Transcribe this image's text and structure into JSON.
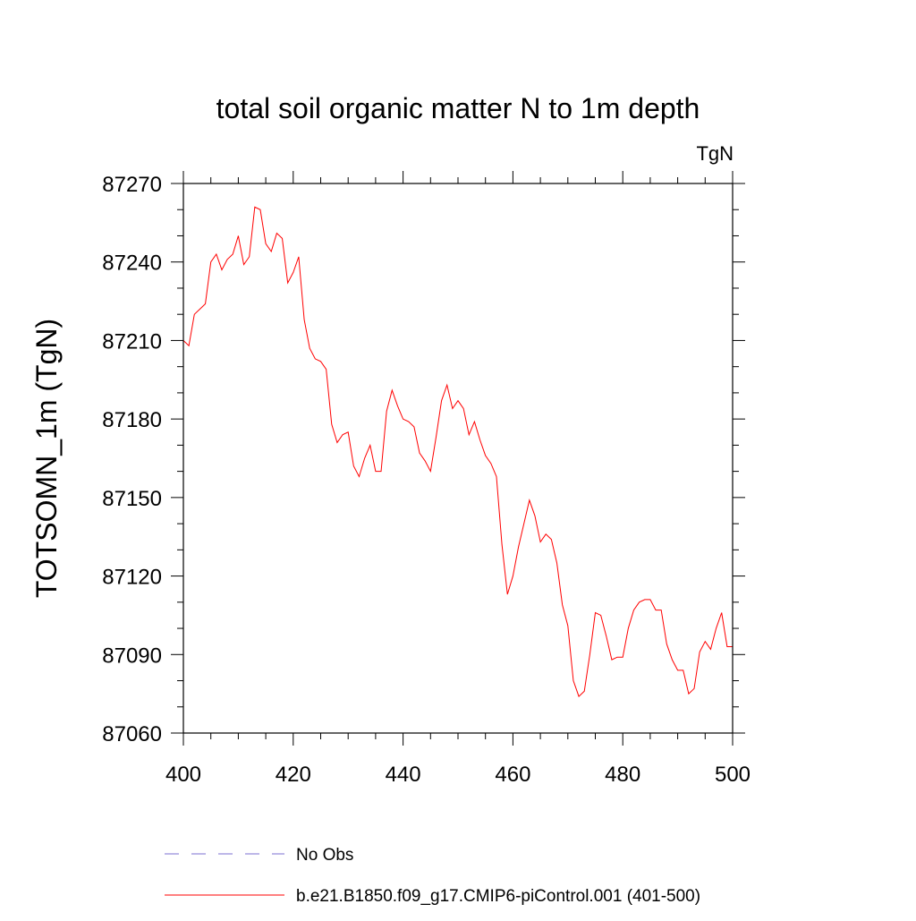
{
  "chart_data": {
    "type": "line",
    "title": "total soil organic matter N to 1m depth",
    "units": "TgN",
    "xlabel": "",
    "ylabel": "TOTSOMN_1m  (TgN)",
    "xlim": [
      400,
      500
    ],
    "ylim": [
      87060,
      87270
    ],
    "xticks": [
      400,
      420,
      440,
      460,
      480,
      500
    ],
    "yticks": [
      87060,
      87090,
      87120,
      87150,
      87180,
      87210,
      87240,
      87270
    ],
    "grid": false,
    "legend_position": "bottom-left",
    "series": [
      {
        "name": "No Obs",
        "color": "#7b6fd0",
        "dash": "dashed",
        "x": [],
        "y": []
      },
      {
        "name": "b.e21.B1850.f09_g17.CMIP6-piControl.001 (401-500)",
        "color": "#ff0000",
        "dash": "solid",
        "x": [
          400,
          401,
          402,
          403,
          404,
          405,
          406,
          407,
          408,
          409,
          410,
          411,
          412,
          413,
          414,
          415,
          416,
          417,
          418,
          419,
          420,
          421,
          422,
          423,
          424,
          425,
          426,
          427,
          428,
          429,
          430,
          431,
          432,
          433,
          434,
          435,
          436,
          437,
          438,
          439,
          440,
          441,
          442,
          443,
          444,
          445,
          446,
          447,
          448,
          449,
          450,
          451,
          452,
          453,
          454,
          455,
          456,
          457,
          458,
          459,
          460,
          461,
          462,
          463,
          464,
          465,
          466,
          467,
          468,
          469,
          470,
          471,
          472,
          473,
          474,
          475,
          476,
          477,
          478,
          479,
          480,
          481,
          482,
          483,
          484,
          485,
          486,
          487,
          488,
          489,
          490,
          491,
          492,
          493,
          494,
          495,
          496,
          497,
          498,
          499,
          500
        ],
        "y": [
          87210,
          87208,
          87220,
          87222,
          87224,
          87240,
          87243,
          87237,
          87241,
          87243,
          87250,
          87239,
          87242,
          87261,
          87260,
          87247,
          87244,
          87251,
          87249,
          87232,
          87236,
          87242,
          87218,
          87207,
          87203,
          87202,
          87199,
          87178,
          87171,
          87174,
          87175,
          87162,
          87158,
          87165,
          87170,
          87160,
          87160,
          87183,
          87191,
          87185,
          87180,
          87179,
          87177,
          87167,
          87164,
          87160,
          87173,
          87187,
          87193,
          87184,
          87187,
          87184,
          87174,
          87179,
          87172,
          87166,
          87163,
          87158,
          87132,
          87113,
          87120,
          87131,
          87140,
          87149,
          87143,
          87133,
          87136,
          87134,
          87125,
          87109,
          87101,
          87080,
          87074,
          87076,
          87090,
          87106,
          87105,
          87097,
          87088,
          87089,
          87089,
          87100,
          87107,
          87110,
          87111,
          87111,
          87107,
          87107,
          87094,
          87088,
          87084,
          87084,
          87075,
          87077,
          87091,
          87095,
          87092,
          87100,
          87106,
          87093,
          87093
        ]
      }
    ]
  }
}
